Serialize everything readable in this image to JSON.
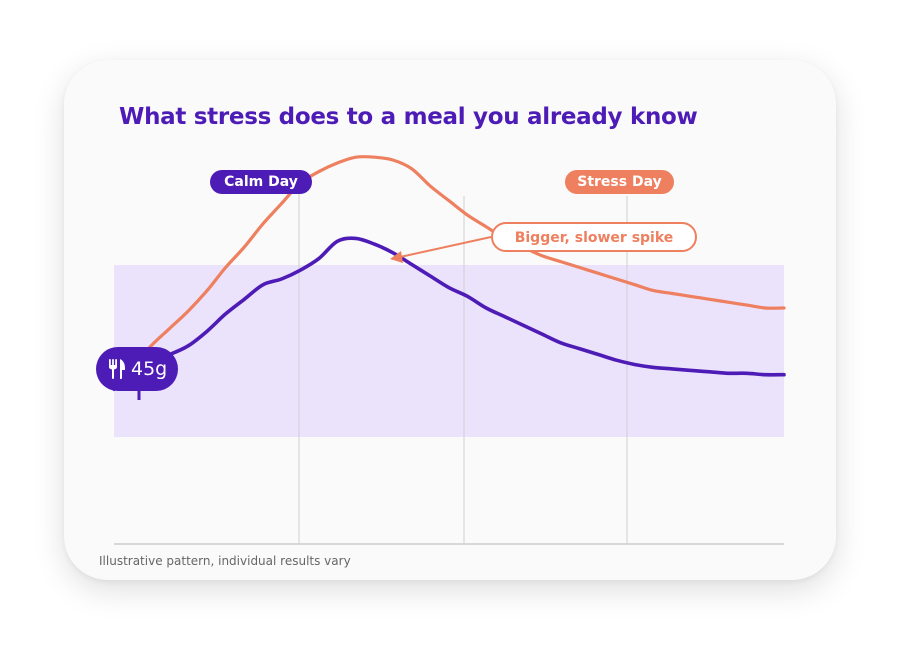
{
  "colors": {
    "calm": "#4d1bb5",
    "stress": "#ee7f5f",
    "band": "#ebe2fb",
    "gridline": "#d0d0d0",
    "axis": "#cccccc",
    "title": "#4d1bb5"
  },
  "title": "What stress does to a meal you already know",
  "footnote": "Illustrative pattern, individual results vary",
  "meal_marker": {
    "icon": "fork-knife-icon",
    "label": "45g"
  },
  "labels": {
    "calm_day": "Calm Day",
    "stress_day": "Stress Day"
  },
  "callout": "Bigger, slower spike",
  "chart_data": {
    "type": "line",
    "title": "What stress does to a meal you already know",
    "xlabel": "",
    "ylabel": "",
    "x_ticks": [],
    "y_ticks": [],
    "grid": "vertical lines only",
    "target_band": true,
    "series": [
      {
        "name": "Calm Day",
        "values": [
          12,
          18,
          22,
          24,
          27,
          32,
          38,
          43,
          48,
          50,
          53,
          57,
          63,
          64,
          62,
          59,
          55,
          51,
          47,
          44,
          40,
          37,
          34,
          31,
          28,
          26,
          24,
          22,
          20.5,
          19.5,
          19,
          18.5,
          18,
          17.5,
          17.5,
          17,
          17
        ]
      },
      {
        "name": "Stress Day",
        "values": [
          14,
          20,
          27,
          33,
          39,
          46,
          54,
          61,
          69,
          76,
          83,
          87,
          90,
          92,
          92,
          91,
          88,
          82,
          77,
          72,
          68,
          64,
          61,
          58,
          56,
          54,
          52,
          50,
          48,
          46,
          45,
          44,
          43,
          42,
          41,
          40,
          40
        ]
      }
    ]
  }
}
